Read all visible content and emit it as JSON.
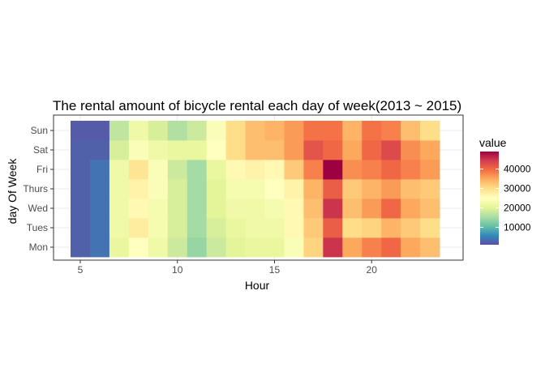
{
  "chart_data": {
    "type": "heatmap",
    "title": "The rental amount of bicycle rental each day of week(2013 ~ 2015)",
    "xlabel": "Hour",
    "ylabel": "day Of Week",
    "x": [
      5,
      6,
      7,
      8,
      9,
      10,
      11,
      12,
      13,
      14,
      15,
      16,
      17,
      18,
      19,
      20,
      21,
      22,
      23
    ],
    "x_ticks": [
      5,
      10,
      15,
      20
    ],
    "y": [
      "Mon",
      "Tues",
      "Wed",
      "Thurs",
      "Fri",
      "Sat",
      "Sun"
    ],
    "values": {
      "Sun": [
        2000,
        2000,
        17000,
        22000,
        19000,
        16000,
        18000,
        24000,
        30000,
        33000,
        34000,
        36000,
        39000,
        39000,
        34000,
        39000,
        38000,
        33000,
        30000
      ],
      "Sat": [
        2500,
        2500,
        19000,
        24000,
        22000,
        21000,
        21000,
        25000,
        30000,
        33000,
        33000,
        36000,
        42000,
        40000,
        35000,
        40000,
        43000,
        37000,
        35000
      ],
      "Fri": [
        2500,
        4000,
        22000,
        29000,
        24000,
        18000,
        15000,
        21000,
        26000,
        27000,
        26000,
        32000,
        38000,
        49000,
        37000,
        38000,
        40000,
        38000,
        36000
      ],
      "Thurs": [
        2500,
        4000,
        22000,
        27000,
        24000,
        19000,
        15000,
        20000,
        23000,
        23000,
        25000,
        27000,
        34000,
        41000,
        32000,
        34000,
        36000,
        33000,
        32000
      ],
      "Wed": [
        2500,
        4000,
        22000,
        26000,
        23000,
        19000,
        15000,
        20000,
        22000,
        22000,
        23000,
        26000,
        33000,
        45000,
        33000,
        36000,
        40000,
        35000,
        33000
      ],
      "Tues": [
        2500,
        4000,
        22000,
        28000,
        23000,
        19000,
        15000,
        19000,
        21000,
        22000,
        22000,
        26000,
        32000,
        41000,
        30000,
        31000,
        34000,
        32000,
        30000
      ],
      "Mon": [
        2500,
        4000,
        21000,
        25000,
        22000,
        18000,
        14000,
        18000,
        20000,
        21000,
        21000,
        24000,
        31000,
        45000,
        35000,
        38000,
        40000,
        35000,
        33000
      ]
    },
    "legend": {
      "title": "value",
      "ticks": [
        10000,
        20000,
        30000,
        40000
      ],
      "range": [
        1000,
        49000
      ],
      "palette": "Spectral (reversed)"
    },
    "colors": {
      "palette": [
        "#5E4FA2",
        "#3288BD",
        "#66C2A5",
        "#ABDDA4",
        "#E6F598",
        "#FFFFBF",
        "#FEE08B",
        "#FDAE61",
        "#F46D43",
        "#D53E4F",
        "#9E0142"
      ],
      "panel_border": "#333333",
      "grid": "#ebebeb"
    }
  }
}
